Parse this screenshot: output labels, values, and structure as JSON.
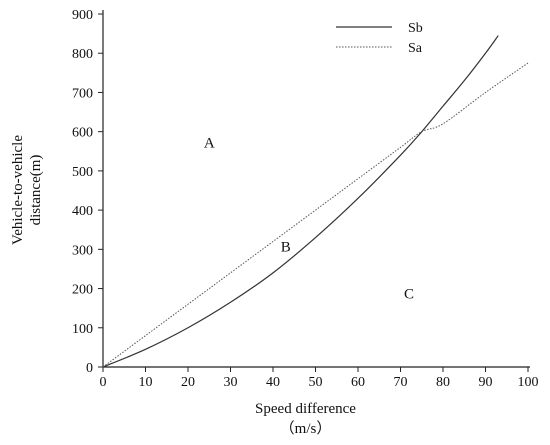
{
  "chart_data": {
    "type": "line",
    "title": "",
    "xlabel": "Speed difference",
    "xlabel_unit": "（m/s）",
    "ylabel_lines": [
      "Vehicle-to-vehicle",
      "distance(m)"
    ],
    "xlim": [
      0,
      100
    ],
    "ylim": [
      0,
      900
    ],
    "x_ticks": [
      0,
      10,
      20,
      30,
      40,
      50,
      60,
      70,
      80,
      90,
      100
    ],
    "y_ticks": [
      0,
      100,
      200,
      300,
      400,
      500,
      600,
      700,
      800,
      900
    ],
    "grid": false,
    "legend_position": "top-right",
    "series": [
      {
        "name": "Sb",
        "style": "solid",
        "color": "#333333",
        "x": [
          0,
          10,
          20,
          30,
          40,
          50,
          60,
          70,
          75,
          80,
          85,
          90,
          93
        ],
        "y": [
          0,
          45,
          100,
          165,
          240,
          330,
          430,
          540,
          600,
          665,
          730,
          800,
          845
        ]
      },
      {
        "name": "Sa",
        "style": "dotted",
        "color": "#555555",
        "x": [
          0,
          10,
          20,
          30,
          40,
          50,
          60,
          70,
          75,
          80,
          90,
          100
        ],
        "y": [
          0,
          80,
          160,
          240,
          320,
          400,
          480,
          560,
          600,
          620,
          700,
          775
        ]
      }
    ],
    "annotations": [
      {
        "text": "A",
        "x": 25,
        "y": 560
      },
      {
        "text": "B",
        "x": 43,
        "y": 295
      },
      {
        "text": "C",
        "x": 72,
        "y": 175
      }
    ]
  }
}
